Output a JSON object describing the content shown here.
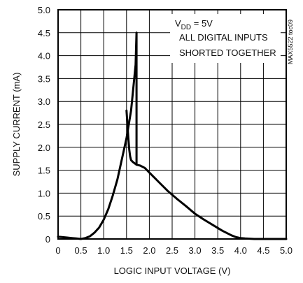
{
  "chart_data": {
    "type": "line",
    "xlabel": "LOGIC INPUT VOLTAGE (V)",
    "ylabel": "SUPPLY CURRENT (mA)",
    "xlim": [
      0,
      5.0
    ],
    "ylim": [
      0,
      5.0
    ],
    "x_ticks": [
      "0",
      "0.5",
      "1.0",
      "1.5",
      "2.0",
      "2.5",
      "3.0",
      "3.5",
      "4.0",
      "4.5",
      "5.0"
    ],
    "y_ticks": [
      "0",
      "0.5",
      "1.0",
      "1.5",
      "2.0",
      "2.5",
      "3.0",
      "3.5",
      "4.0",
      "4.5",
      "5.0"
    ],
    "grid": true,
    "annotation": {
      "vdd_main": "V",
      "vdd_sub": "DD",
      "vdd_rest": " = 5V",
      "line2": "ALL DIGITAL INPUTS",
      "line3": "SHORTED TOGETHER"
    },
    "side_code": "MAX5522 toc09",
    "series": [
      {
        "x": [
          0.0,
          0.1,
          0.2,
          0.3,
          0.4,
          0.5,
          0.6,
          0.7,
          0.8,
          0.9,
          1.0,
          1.1,
          1.2,
          1.3,
          1.4,
          1.5,
          1.6,
          1.7,
          1.72,
          1.72,
          1.72,
          1.8,
          1.9,
          2.0,
          2.2,
          2.4,
          2.6,
          2.8,
          3.0,
          3.2,
          3.4,
          3.6,
          3.8,
          3.9,
          4.0,
          4.1,
          4.3,
          4.5,
          5.0
        ],
        "y": [
          0.05,
          0.04,
          0.03,
          0.02,
          0.01,
          0.0,
          0.02,
          0.06,
          0.14,
          0.25,
          0.42,
          0.65,
          0.95,
          1.3,
          1.75,
          2.2,
          2.8,
          3.8,
          4.5,
          3.0,
          1.62,
          1.6,
          1.55,
          1.45,
          1.25,
          1.05,
          0.88,
          0.72,
          0.55,
          0.42,
          0.3,
          0.18,
          0.08,
          0.04,
          0.02,
          0.01,
          0.0,
          0.0,
          0.0
        ],
        "color": "#000000"
      },
      {
        "x": [
          1.5,
          1.52,
          1.54,
          1.56,
          1.58,
          1.6,
          1.64,
          1.68,
          1.72
        ],
        "y": [
          2.8,
          2.5,
          2.2,
          1.95,
          1.8,
          1.72,
          1.68,
          1.65,
          1.62
        ],
        "color": "#000000"
      }
    ]
  }
}
